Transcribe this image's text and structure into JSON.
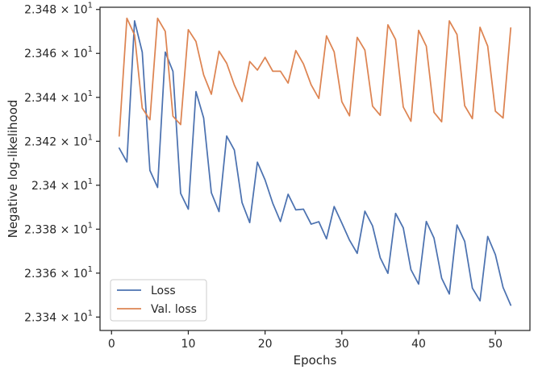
{
  "chart_data": {
    "type": "line",
    "xlabel": "Epochs",
    "ylabel": "Negative log-likelihood",
    "xlim": [
      -1.5,
      54.5
    ],
    "ylim": [
      23.3339,
      23.481
    ],
    "x_ticks": [
      {
        "value": 0,
        "label": "0"
      },
      {
        "value": 10,
        "label": "10"
      },
      {
        "value": 20,
        "label": "20"
      },
      {
        "value": 30,
        "label": "30"
      },
      {
        "value": 40,
        "label": "40"
      },
      {
        "value": 50,
        "label": "50"
      }
    ],
    "y_ticks": [
      {
        "value": 23.34,
        "mant": "2.334",
        "exp": "1"
      },
      {
        "value": 23.36,
        "mant": "2.336",
        "exp": "1"
      },
      {
        "value": 23.38,
        "mant": "2.338",
        "exp": "1"
      },
      {
        "value": 23.4,
        "mant": "2.34",
        "exp": "1"
      },
      {
        "value": 23.42,
        "mant": "2.342",
        "exp": "1"
      },
      {
        "value": 23.44,
        "mant": "2.344",
        "exp": "1"
      },
      {
        "value": 23.46,
        "mant": "2.346",
        "exp": "1"
      },
      {
        "value": 23.48,
        "mant": "2.348",
        "exp": "1"
      }
    ],
    "grid": false,
    "legend_position": "lower-left",
    "series": [
      {
        "name": "Loss",
        "color": "#4c72b0",
        "x": [
          1,
          2,
          3,
          4,
          5,
          6,
          7,
          8,
          9,
          10,
          11,
          12,
          13,
          14,
          15,
          16,
          17,
          18,
          19,
          20,
          21,
          22,
          23,
          24,
          25,
          26,
          27,
          28,
          29,
          30,
          31,
          32,
          33,
          34,
          35,
          36,
          37,
          38,
          39,
          40,
          41,
          42,
          43,
          44,
          45,
          46,
          47,
          48,
          49,
          50,
          51,
          52
        ],
        "values": [
          23.4169,
          23.4106,
          23.4748,
          23.4606,
          23.4067,
          23.399,
          23.4606,
          23.4518,
          23.3963,
          23.3891,
          23.4426,
          23.4306,
          23.3966,
          23.388,
          23.4224,
          23.416,
          23.3921,
          23.383,
          23.4105,
          23.4024,
          23.3918,
          23.3835,
          23.3959,
          23.3888,
          23.3891,
          23.3823,
          23.3834,
          23.3756,
          23.3903,
          23.3828,
          23.375,
          23.369,
          23.3882,
          23.3815,
          23.367,
          23.3599,
          23.3872,
          23.3806,
          23.3616,
          23.355,
          23.3835,
          23.376,
          23.3577,
          23.3505,
          23.3819,
          23.3745,
          23.3532,
          23.3474,
          23.3767,
          23.3684,
          23.3535,
          23.3454
        ]
      },
      {
        "name": "Val. loss",
        "color": "#dd8452",
        "x": [
          1,
          2,
          3,
          4,
          5,
          6,
          7,
          8,
          9,
          10,
          11,
          12,
          13,
          14,
          15,
          16,
          17,
          18,
          19,
          20,
          21,
          22,
          23,
          24,
          25,
          26,
          27,
          28,
          29,
          30,
          31,
          32,
          33,
          34,
          35,
          36,
          37,
          38,
          39,
          40,
          41,
          42,
          43,
          44,
          45,
          46,
          47,
          48,
          49,
          50,
          51,
          52
        ],
        "values": [
          23.4224,
          23.476,
          23.4684,
          23.4351,
          23.4298,
          23.476,
          23.47,
          23.4314,
          23.4276,
          23.4708,
          23.4654,
          23.4502,
          23.4414,
          23.461,
          23.4555,
          23.4456,
          23.4381,
          23.4563,
          23.4524,
          23.4582,
          23.4519,
          23.4519,
          23.4465,
          23.4613,
          23.4552,
          23.4457,
          23.4395,
          23.468,
          23.4607,
          23.438,
          23.4316,
          23.4673,
          23.4615,
          23.436,
          23.4318,
          23.473,
          23.4663,
          23.4356,
          23.4291,
          23.4705,
          23.4633,
          23.4332,
          23.4289,
          23.4748,
          23.4686,
          23.4362,
          23.4303,
          23.4719,
          23.4633,
          23.4337,
          23.4306,
          23.4716
        ]
      }
    ]
  }
}
